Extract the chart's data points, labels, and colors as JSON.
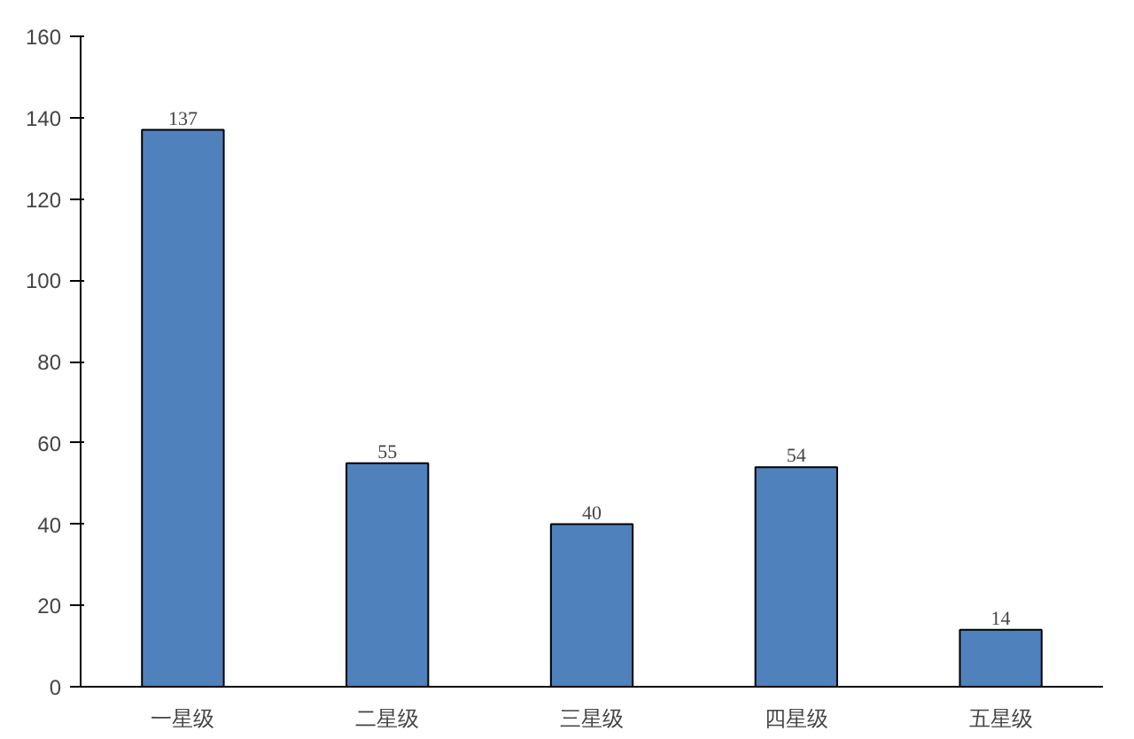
{
  "chart_data": {
    "type": "bar",
    "categories": [
      "一星级",
      "二星级",
      "三星级",
      "四星级",
      "五星级"
    ],
    "values": [
      137,
      55,
      40,
      54,
      14
    ],
    "color": "#4f81bd",
    "ylim": [
      0,
      160
    ],
    "yticks": [
      0,
      20,
      40,
      60,
      80,
      100,
      120,
      140,
      160
    ],
    "grid": false,
    "data_labels": true
  }
}
